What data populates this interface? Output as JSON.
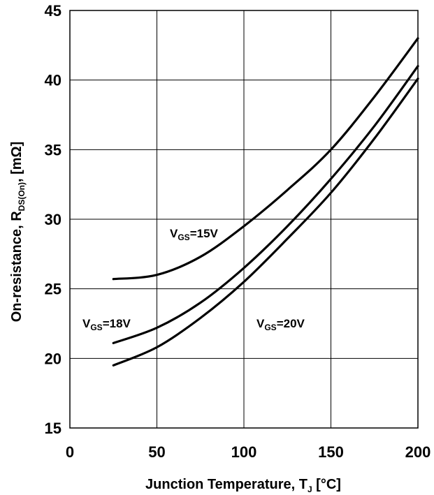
{
  "chart_data": {
    "type": "line",
    "title": "",
    "xlabel": {
      "main": "Junction Temperature, T",
      "sub": "J",
      "unit": " [°C]"
    },
    "ylabel": {
      "main": "On-resistance, R",
      "sub": "DS(On)",
      "unit": ", [mΩ]"
    },
    "xlim": [
      0,
      200
    ],
    "ylim": [
      15,
      45
    ],
    "xticks": [
      "0",
      "50",
      "100",
      "150",
      "200"
    ],
    "yticks": [
      "15",
      "20",
      "25",
      "30",
      "35",
      "40",
      "45"
    ],
    "grid": true,
    "series": [
      {
        "name": "VGS=15V",
        "label_main": "V",
        "label_sub": "GS",
        "label_rest": "=15V",
        "x": [
          25,
          50,
          75,
          100,
          125,
          150,
          175,
          200
        ],
        "y": [
          25.7,
          26.0,
          27.3,
          29.5,
          32.1,
          35.0,
          38.8,
          43.0
        ]
      },
      {
        "name": "VGS=18V",
        "label_main": "V",
        "label_sub": "GS",
        "label_rest": "=18V",
        "x": [
          25,
          50,
          75,
          100,
          125,
          150,
          175,
          200
        ],
        "y": [
          21.1,
          22.2,
          24.0,
          26.5,
          29.5,
          32.9,
          36.7,
          41.0
        ]
      },
      {
        "name": "VGS=20V",
        "label_main": "V",
        "label_sub": "GS",
        "label_rest": "=20V",
        "x": [
          25,
          50,
          75,
          100,
          125,
          150,
          175,
          200
        ],
        "y": [
          19.5,
          20.8,
          22.9,
          25.5,
          28.6,
          31.9,
          35.8,
          40.1
        ]
      }
    ]
  }
}
